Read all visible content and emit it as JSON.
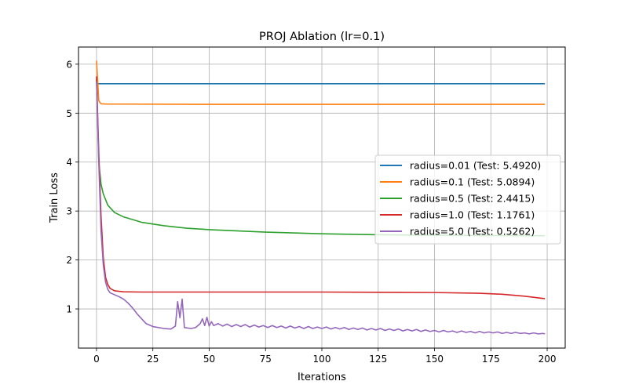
{
  "chart_data": {
    "type": "line",
    "title": "PROJ Ablation (lr=0.1)",
    "xlabel": "Iterations",
    "ylabel": "Train Loss",
    "xlim": [
      -8,
      208
    ],
    "ylim": [
      0.2,
      6.35
    ],
    "xticks": [
      0,
      25,
      50,
      75,
      100,
      125,
      150,
      175,
      200
    ],
    "yticks": [
      1,
      2,
      3,
      4,
      5,
      6
    ],
    "grid": true,
    "legend_position": "center-right",
    "series": [
      {
        "name": "radius=0.01 (Test: 5.4920)",
        "color": "#1f77b4",
        "points": [
          [
            0,
            5.6
          ],
          [
            199,
            5.6
          ]
        ]
      },
      {
        "name": "radius=0.1 (Test: 5.0894)",
        "color": "#ff7f0e",
        "points": [
          [
            0,
            6.07
          ],
          [
            1,
            5.25
          ],
          [
            2,
            5.19
          ],
          [
            5,
            5.185
          ],
          [
            10,
            5.185
          ],
          [
            50,
            5.18
          ],
          [
            100,
            5.18
          ],
          [
            150,
            5.18
          ],
          [
            199,
            5.18
          ]
        ]
      },
      {
        "name": "radius=0.5 (Test: 2.4415)",
        "color": "#2ca02c",
        "points": [
          [
            0,
            5.7
          ],
          [
            1,
            4.0
          ],
          [
            2,
            3.55
          ],
          [
            3,
            3.35
          ],
          [
            5,
            3.12
          ],
          [
            8,
            2.97
          ],
          [
            12,
            2.88
          ],
          [
            20,
            2.77
          ],
          [
            30,
            2.7
          ],
          [
            40,
            2.65
          ],
          [
            50,
            2.62
          ],
          [
            75,
            2.57
          ],
          [
            100,
            2.535
          ],
          [
            125,
            2.515
          ],
          [
            150,
            2.505
          ],
          [
            175,
            2.5
          ],
          [
            199,
            2.495
          ]
        ]
      },
      {
        "name": "radius=1.0 (Test: 1.1761)",
        "color": "#d62728",
        "points": [
          [
            0,
            5.75
          ],
          [
            1,
            4.2
          ],
          [
            2,
            2.9
          ],
          [
            3,
            2.05
          ],
          [
            4,
            1.65
          ],
          [
            5,
            1.5
          ],
          [
            6,
            1.42
          ],
          [
            8,
            1.37
          ],
          [
            12,
            1.35
          ],
          [
            20,
            1.345
          ],
          [
            50,
            1.345
          ],
          [
            100,
            1.345
          ],
          [
            125,
            1.34
          ],
          [
            150,
            1.335
          ],
          [
            170,
            1.32
          ],
          [
            180,
            1.3
          ],
          [
            190,
            1.26
          ],
          [
            199,
            1.21
          ]
        ]
      },
      {
        "name": "radius=5.0 (Test: 0.5262)",
        "color": "#9467bd",
        "points": [
          [
            0,
            5.65
          ],
          [
            1,
            4.0
          ],
          [
            2,
            2.6
          ],
          [
            3,
            1.9
          ],
          [
            4,
            1.55
          ],
          [
            5,
            1.4
          ],
          [
            6,
            1.33
          ],
          [
            8,
            1.29
          ],
          [
            10,
            1.25
          ],
          [
            12,
            1.2
          ],
          [
            14,
            1.12
          ],
          [
            16,
            1.02
          ],
          [
            18,
            0.9
          ],
          [
            20,
            0.8
          ],
          [
            22,
            0.7
          ],
          [
            25,
            0.64
          ],
          [
            30,
            0.6
          ],
          [
            33,
            0.59
          ],
          [
            35,
            0.65
          ],
          [
            36,
            1.15
          ],
          [
            37,
            0.82
          ],
          [
            38,
            1.2
          ],
          [
            39,
            0.62
          ],
          [
            42,
            0.6
          ],
          [
            44,
            0.62
          ],
          [
            46,
            0.7
          ],
          [
            47,
            0.8
          ],
          [
            48,
            0.66
          ],
          [
            49,
            0.83
          ],
          [
            50,
            0.65
          ],
          [
            51,
            0.74
          ],
          [
            52,
            0.66
          ],
          [
            54,
            0.7
          ],
          [
            56,
            0.65
          ],
          [
            58,
            0.69
          ],
          [
            60,
            0.64
          ],
          [
            62,
            0.68
          ],
          [
            64,
            0.64
          ],
          [
            66,
            0.68
          ],
          [
            68,
            0.63
          ],
          [
            70,
            0.67
          ],
          [
            72,
            0.63
          ],
          [
            74,
            0.66
          ],
          [
            76,
            0.62
          ],
          [
            78,
            0.66
          ],
          [
            80,
            0.62
          ],
          [
            82,
            0.65
          ],
          [
            84,
            0.61
          ],
          [
            86,
            0.65
          ],
          [
            88,
            0.61
          ],
          [
            90,
            0.64
          ],
          [
            92,
            0.6
          ],
          [
            94,
            0.64
          ],
          [
            96,
            0.6
          ],
          [
            98,
            0.63
          ],
          [
            100,
            0.6
          ],
          [
            102,
            0.63
          ],
          [
            104,
            0.59
          ],
          [
            106,
            0.62
          ],
          [
            108,
            0.59
          ],
          [
            110,
            0.62
          ],
          [
            112,
            0.58
          ],
          [
            114,
            0.61
          ],
          [
            116,
            0.58
          ],
          [
            118,
            0.61
          ],
          [
            120,
            0.57
          ],
          [
            122,
            0.6
          ],
          [
            124,
            0.57
          ],
          [
            126,
            0.6
          ],
          [
            128,
            0.56
          ],
          [
            130,
            0.59
          ],
          [
            132,
            0.56
          ],
          [
            134,
            0.59
          ],
          [
            136,
            0.55
          ],
          [
            138,
            0.58
          ],
          [
            140,
            0.55
          ],
          [
            142,
            0.58
          ],
          [
            144,
            0.54
          ],
          [
            146,
            0.57
          ],
          [
            148,
            0.54
          ],
          [
            150,
            0.56
          ],
          [
            152,
            0.53
          ],
          [
            154,
            0.56
          ],
          [
            156,
            0.53
          ],
          [
            158,
            0.55
          ],
          [
            160,
            0.52
          ],
          [
            162,
            0.55
          ],
          [
            164,
            0.52
          ],
          [
            166,
            0.54
          ],
          [
            168,
            0.51
          ],
          [
            170,
            0.54
          ],
          [
            172,
            0.51
          ],
          [
            174,
            0.53
          ],
          [
            176,
            0.51
          ],
          [
            178,
            0.53
          ],
          [
            180,
            0.5
          ],
          [
            182,
            0.52
          ],
          [
            184,
            0.5
          ],
          [
            186,
            0.52
          ],
          [
            188,
            0.5
          ],
          [
            190,
            0.51
          ],
          [
            192,
            0.49
          ],
          [
            194,
            0.51
          ],
          [
            196,
            0.49
          ],
          [
            198,
            0.5
          ],
          [
            199,
            0.49
          ]
        ]
      }
    ]
  }
}
